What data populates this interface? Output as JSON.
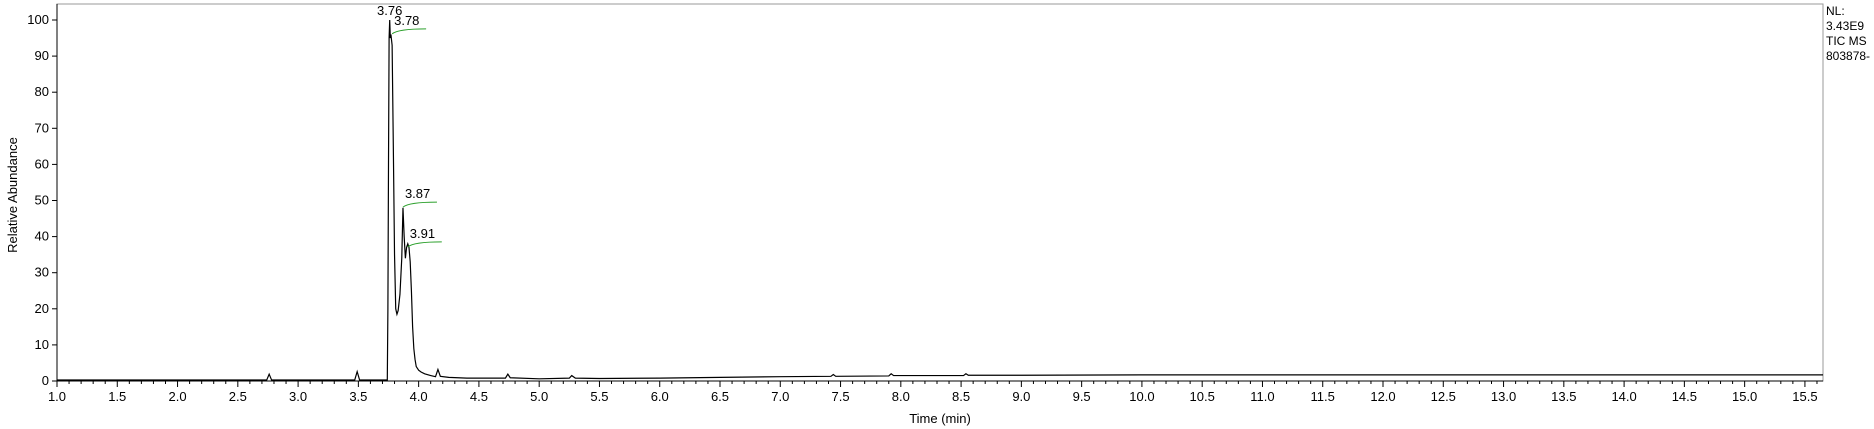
{
  "info": {
    "nl_label": "NL:",
    "nl_value": "3.43E9",
    "scan_label": "TIC  MS",
    "file_id": "803878-"
  },
  "chart_data": {
    "type": "line",
    "title": "",
    "xlabel": "Time (min)",
    "ylabel": "Relative Abundance",
    "xlim": [
      1.0,
      15.65
    ],
    "ylim": [
      0,
      100
    ],
    "grid": false,
    "x_ticks": [
      "1.0",
      "1.5",
      "2.0",
      "2.5",
      "3.0",
      "3.5",
      "4.0",
      "4.5",
      "5.0",
      "5.5",
      "6.0",
      "6.5",
      "7.0",
      "7.5",
      "8.0",
      "8.5",
      "9.0",
      "9.5",
      "10.0",
      "10.5",
      "11.0",
      "11.5",
      "12.0",
      "12.5",
      "13.0",
      "13.5",
      "14.0",
      "14.5",
      "15.0",
      "15.5"
    ],
    "y_ticks": [
      "0",
      "10",
      "20",
      "30",
      "40",
      "50",
      "60",
      "70",
      "80",
      "90",
      "100"
    ],
    "peak_labels": [
      {
        "label": "3.76",
        "x": 3.76,
        "y": 100
      },
      {
        "label": "3.78",
        "x": 3.78,
        "y": 97
      },
      {
        "label": "3.87",
        "x": 3.87,
        "y": 49
      },
      {
        "label": "3.91",
        "x": 3.91,
        "y": 38
      }
    ],
    "series": [
      {
        "points": [
          [
            1.0,
            0.3
          ],
          [
            2.74,
            0.3
          ],
          [
            2.76,
            1.9
          ],
          [
            2.78,
            0.3
          ],
          [
            3.47,
            0.3
          ],
          [
            3.49,
            2.6
          ],
          [
            3.51,
            0.3
          ],
          [
            3.74,
            0.3
          ],
          [
            3.745,
            20
          ],
          [
            3.75,
            60
          ],
          [
            3.755,
            95
          ],
          [
            3.76,
            100
          ],
          [
            3.765,
            95
          ],
          [
            3.77,
            96
          ],
          [
            3.78,
            93
          ],
          [
            3.79,
            65
          ],
          [
            3.8,
            35
          ],
          [
            3.81,
            20
          ],
          [
            3.82,
            18.5
          ],
          [
            3.83,
            19.5
          ],
          [
            3.845,
            24
          ],
          [
            3.86,
            34
          ],
          [
            3.87,
            48
          ],
          [
            3.88,
            40
          ],
          [
            3.89,
            34
          ],
          [
            3.9,
            37
          ],
          [
            3.91,
            38
          ],
          [
            3.92,
            37
          ],
          [
            3.93,
            33
          ],
          [
            3.94,
            25
          ],
          [
            3.95,
            15
          ],
          [
            3.96,
            9
          ],
          [
            3.97,
            6
          ],
          [
            3.98,
            4
          ],
          [
            4.0,
            3
          ],
          [
            4.02,
            2.5
          ],
          [
            4.05,
            2
          ],
          [
            4.1,
            1.5
          ],
          [
            4.14,
            1.2
          ],
          [
            4.16,
            3.2
          ],
          [
            4.18,
            1.3
          ],
          [
            4.25,
            1
          ],
          [
            4.4,
            0.8
          ],
          [
            4.72,
            0.8
          ],
          [
            4.74,
            1.9
          ],
          [
            4.76,
            0.9
          ],
          [
            5.0,
            0.6
          ],
          [
            5.25,
            0.8
          ],
          [
            5.27,
            1.5
          ],
          [
            5.3,
            0.8
          ],
          [
            5.5,
            0.7
          ],
          [
            6.0,
            0.8
          ],
          [
            6.5,
            1.0
          ],
          [
            7.0,
            1.2
          ],
          [
            7.42,
            1.3
          ],
          [
            7.44,
            1.8
          ],
          [
            7.46,
            1.3
          ],
          [
            7.9,
            1.4
          ],
          [
            7.92,
            2.0
          ],
          [
            7.94,
            1.5
          ],
          [
            8.52,
            1.5
          ],
          [
            8.54,
            2.0
          ],
          [
            8.56,
            1.6
          ],
          [
            9.0,
            1.6
          ],
          [
            10.0,
            1.7
          ],
          [
            11.0,
            1.7
          ],
          [
            12.0,
            1.7
          ],
          [
            13.0,
            1.7
          ],
          [
            14.0,
            1.7
          ],
          [
            15.0,
            1.7
          ],
          [
            15.65,
            1.7
          ]
        ]
      }
    ]
  }
}
